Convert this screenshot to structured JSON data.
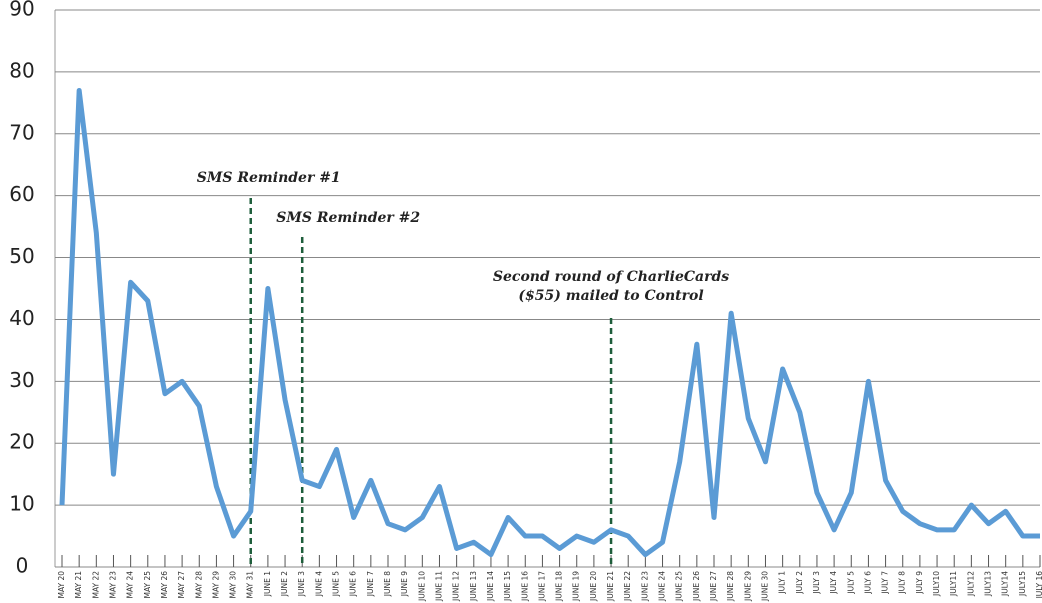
{
  "chart_data": {
    "type": "line",
    "categories": [
      "MAY 20",
      "MAY 21",
      "MAY 22",
      "MAY 23",
      "MAY 24",
      "MAY 25",
      "MAY 26",
      "MAY 27",
      "MAY 28",
      "MAY 29",
      "MAY 30",
      "MAY 31",
      "JUNE 1",
      "JUNE 2",
      "JUNE 3",
      "JUNE 4",
      "JUNE 5",
      "JUNE 6",
      "JUNE 7",
      "JUNE 8",
      "JUNE 9",
      "JUNE 10",
      "JUNE 11",
      "JUNE 12",
      "JUNE 13",
      "JUNE 14",
      "JUNE 15",
      "JUNE 16",
      "JUNE 17",
      "JUNE 18",
      "JUNE 19",
      "JUNE 20",
      "JUNE 21",
      "JUNE 22",
      "JUNE 23",
      "JUNE 24",
      "JUNE 25",
      "JUNE 26",
      "JUNE 27",
      "JUNE 28",
      "JUNE 29",
      "JUNE 30",
      "JULY 1",
      "JULY 2",
      "JULY 3",
      "JULY 4",
      "JULY 5",
      "JULY 6",
      "JULY 7",
      "JULY 8",
      "JULY 9",
      "JULY10",
      "JULY11",
      "JULY12",
      "JULY13",
      "JULY14",
      "JULY15",
      "JULY 16"
    ],
    "series": [
      {
        "color": "#5b9bd5",
        "values": [
          10,
          77,
          54,
          15,
          46,
          43,
          28,
          30,
          26,
          13,
          5,
          9,
          45,
          27,
          14,
          13,
          19,
          8,
          14,
          7,
          6,
          8,
          13,
          3,
          4,
          2,
          8,
          5,
          5,
          3,
          5,
          4,
          6,
          5,
          2,
          4,
          17,
          36,
          8,
          41,
          24,
          17,
          32,
          25,
          12,
          6,
          12,
          30,
          14,
          9,
          7,
          6,
          6,
          10,
          7,
          9,
          5,
          5
        ]
      }
    ],
    "ylim": [
      0,
      90
    ],
    "yticks": [
      0,
      10,
      20,
      30,
      40,
      50,
      60,
      70,
      80,
      90
    ],
    "grid": true,
    "annotations": [
      {
        "lines": [
          "SMS Reminder #1"
        ],
        "at": "MAY 31",
        "color": "#1e5e3b"
      },
      {
        "lines": [
          "SMS Reminder #2"
        ],
        "at": "JUNE 3",
        "color": "#1e5e3b"
      },
      {
        "lines": [
          "Second round of CharlieCards",
          "($55) mailed to Control"
        ],
        "at": "JUNE 21",
        "color": "#1e5e3b"
      }
    ]
  }
}
